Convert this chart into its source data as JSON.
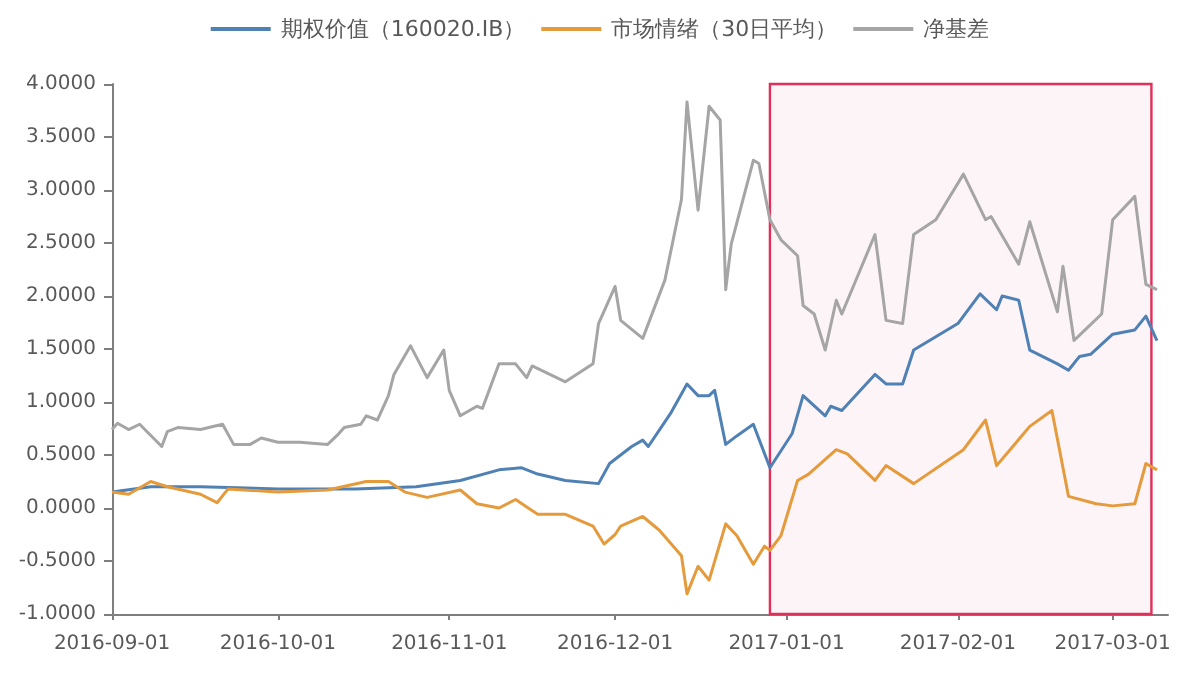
{
  "chart_data": {
    "type": "line",
    "legend": "top",
    "grid": false,
    "marker": "none",
    "line_style": "solid",
    "xlim": [
      "2016-09-01",
      "2017-03-11"
    ],
    "xticks": [
      "2016-09-01",
      "2016-10-01",
      "2016-11-01",
      "2016-12-01",
      "2017-01-01",
      "2017-02-01",
      "2017-03-01"
    ],
    "ylim": [
      -1,
      4
    ],
    "yticks": [
      {
        "value": -1,
        "label": "-1.0000"
      },
      {
        "value": -0.5,
        "label": "-0.5000"
      },
      {
        "value": 0,
        "label": "0.0000"
      },
      {
        "value": 0.5,
        "label": "0.5000"
      },
      {
        "value": 1,
        "label": "1.0000"
      },
      {
        "value": 1.5,
        "label": "1.5000"
      },
      {
        "value": 2,
        "label": "2.0000"
      },
      {
        "value": 2.5,
        "label": "2.5000"
      },
      {
        "value": 3,
        "label": "3.0000"
      },
      {
        "value": 3.5,
        "label": "3.5000"
      },
      {
        "value": 4,
        "label": "4.0000"
      }
    ],
    "bands": [
      {
        "axis": "x",
        "from": "2016-12-29",
        "to": "2017-03-08",
        "color": "#e0305a"
      }
    ],
    "series": [
      {
        "name": "期权价值（160020.IB）",
        "color": "#4f81b4",
        "x": [
          "2016-09-01",
          "2016-09-08",
          "2016-09-17",
          "2016-10-01",
          "2016-10-15",
          "2016-10-26",
          "2016-11-03",
          "2016-11-10",
          "2016-11-14",
          "2016-11-17",
          "2016-11-22",
          "2016-11-28",
          "2016-11-30",
          "2016-12-04",
          "2016-12-06",
          "2016-12-07",
          "2016-12-11",
          "2016-12-14",
          "2016-12-16",
          "2016-12-18",
          "2016-12-19",
          "2016-12-21",
          "2016-12-23",
          "2016-12-26",
          "2016-12-29",
          "2017-01-02",
          "2017-01-04",
          "2017-01-08",
          "2017-01-09",
          "2017-01-11",
          "2017-01-17",
          "2017-01-19",
          "2017-01-22",
          "2017-01-24",
          "2017-02-01",
          "2017-02-05",
          "2017-02-08",
          "2017-02-09",
          "2017-02-12",
          "2017-02-14",
          "2017-02-19",
          "2017-02-21",
          "2017-02-23",
          "2017-02-25",
          "2017-03-01",
          "2017-03-05",
          "2017-03-07",
          "2017-03-09"
        ],
        "values": [
          0.15,
          0.2,
          0.2,
          0.18,
          0.18,
          0.2,
          0.26,
          0.36,
          0.38,
          0.32,
          0.26,
          0.23,
          0.42,
          0.58,
          0.64,
          0.58,
          0.89,
          1.17,
          1.06,
          1.06,
          1.11,
          0.6,
          0.68,
          0.79,
          0.38,
          0.7,
          1.06,
          0.87,
          0.96,
          0.92,
          1.26,
          1.17,
          1.17,
          1.49,
          1.74,
          2.02,
          1.87,
          2.0,
          1.96,
          1.49,
          1.36,
          1.3,
          1.43,
          1.45,
          1.64,
          1.68,
          1.81,
          1.58
        ]
      },
      {
        "name": "市场情绪（30日平均）",
        "color": "#e59a3c",
        "x": [
          "2016-09-01",
          "2016-09-04",
          "2016-09-08",
          "2016-09-11",
          "2016-09-17",
          "2016-09-20",
          "2016-09-22",
          "2016-10-01",
          "2016-10-10",
          "2016-10-17",
          "2016-10-21",
          "2016-10-24",
          "2016-10-28",
          "2016-11-03",
          "2016-11-06",
          "2016-11-10",
          "2016-11-13",
          "2016-11-17",
          "2016-11-22",
          "2016-11-27",
          "2016-11-29",
          "2016-12-01",
          "2016-12-02",
          "2016-12-06",
          "2016-12-09",
          "2016-12-13",
          "2016-12-14",
          "2016-12-16",
          "2016-12-18",
          "2016-12-21",
          "2016-12-23",
          "2016-12-26",
          "2016-12-28",
          "2016-12-29",
          "2016-12-31",
          "2017-01-03",
          "2017-01-05",
          "2017-01-10",
          "2017-01-12",
          "2017-01-17",
          "2017-01-19",
          "2017-01-24",
          "2017-02-02",
          "2017-02-06",
          "2017-02-08",
          "2017-02-14",
          "2017-02-18",
          "2017-02-21",
          "2017-02-26",
          "2017-03-01",
          "2017-03-05",
          "2017-03-07",
          "2017-03-09"
        ],
        "values": [
          0.15,
          0.13,
          0.25,
          0.2,
          0.13,
          0.05,
          0.18,
          0.15,
          0.17,
          0.25,
          0.25,
          0.15,
          0.1,
          0.17,
          0.04,
          0.0,
          0.08,
          -0.06,
          -0.06,
          -0.17,
          -0.34,
          -0.25,
          -0.17,
          -0.08,
          -0.21,
          -0.45,
          -0.81,
          -0.55,
          -0.68,
          -0.15,
          -0.26,
          -0.53,
          -0.36,
          -0.4,
          -0.26,
          0.26,
          0.32,
          0.55,
          0.51,
          0.26,
          0.4,
          0.23,
          0.55,
          0.83,
          0.4,
          0.77,
          0.92,
          0.11,
          0.04,
          0.02,
          0.04,
          0.42,
          0.36
        ]
      },
      {
        "name": "净基差",
        "color": "#a5a5a5",
        "x": [
          "2016-09-01",
          "2016-09-02",
          "2016-09-04",
          "2016-09-06",
          "2016-09-10",
          "2016-09-11",
          "2016-09-13",
          "2016-09-17",
          "2016-09-21",
          "2016-09-23",
          "2016-09-26",
          "2016-09-28",
          "2016-10-01",
          "2016-10-05",
          "2016-10-10",
          "2016-10-12",
          "2016-10-13",
          "2016-10-16",
          "2016-10-17",
          "2016-10-19",
          "2016-10-21",
          "2016-10-22",
          "2016-10-25",
          "2016-10-28",
          "2016-10-31",
          "2016-11-01",
          "2016-11-03",
          "2016-11-06",
          "2016-11-07",
          "2016-11-10",
          "2016-11-13",
          "2016-11-15",
          "2016-11-16",
          "2016-11-22",
          "2016-11-27",
          "2016-11-28",
          "2016-12-01",
          "2016-12-02",
          "2016-12-06",
          "2016-12-10",
          "2016-12-13",
          "2016-12-14",
          "2016-12-16",
          "2016-12-18",
          "2016-12-20",
          "2016-12-21",
          "2016-12-22",
          "2016-12-26",
          "2016-12-27",
          "2016-12-29",
          "2016-12-31",
          "2017-01-03",
          "2017-01-04",
          "2017-01-06",
          "2017-01-08",
          "2017-01-10",
          "2017-01-11",
          "2017-01-17",
          "2017-01-19",
          "2017-01-22",
          "2017-01-24",
          "2017-01-28",
          "2017-02-02",
          "2017-02-06",
          "2017-02-07",
          "2017-02-12",
          "2017-02-14",
          "2017-02-19",
          "2017-02-20",
          "2017-02-22",
          "2017-02-24",
          "2017-02-27",
          "2017-03-01",
          "2017-03-05",
          "2017-03-07",
          "2017-03-09"
        ],
        "values": [
          0.74,
          0.8,
          0.74,
          0.79,
          0.58,
          0.72,
          0.76,
          0.74,
          0.79,
          0.6,
          0.6,
          0.66,
          0.62,
          0.62,
          0.6,
          0.7,
          0.76,
          0.79,
          0.87,
          0.83,
          1.06,
          1.26,
          1.53,
          1.23,
          1.49,
          1.11,
          0.87,
          0.96,
          0.94,
          1.36,
          1.36,
          1.23,
          1.34,
          1.19,
          1.36,
          1.74,
          2.09,
          1.77,
          1.6,
          2.15,
          2.91,
          3.83,
          2.81,
          3.79,
          3.66,
          2.06,
          2.49,
          3.28,
          3.25,
          2.72,
          2.53,
          2.38,
          1.91,
          1.83,
          1.49,
          1.96,
          1.83,
          2.58,
          1.77,
          1.74,
          2.58,
          2.72,
          3.15,
          2.72,
          2.75,
          2.3,
          2.7,
          1.85,
          2.28,
          1.58,
          1.68,
          1.83,
          2.72,
          2.94,
          2.11,
          2.06
        ]
      }
    ]
  }
}
